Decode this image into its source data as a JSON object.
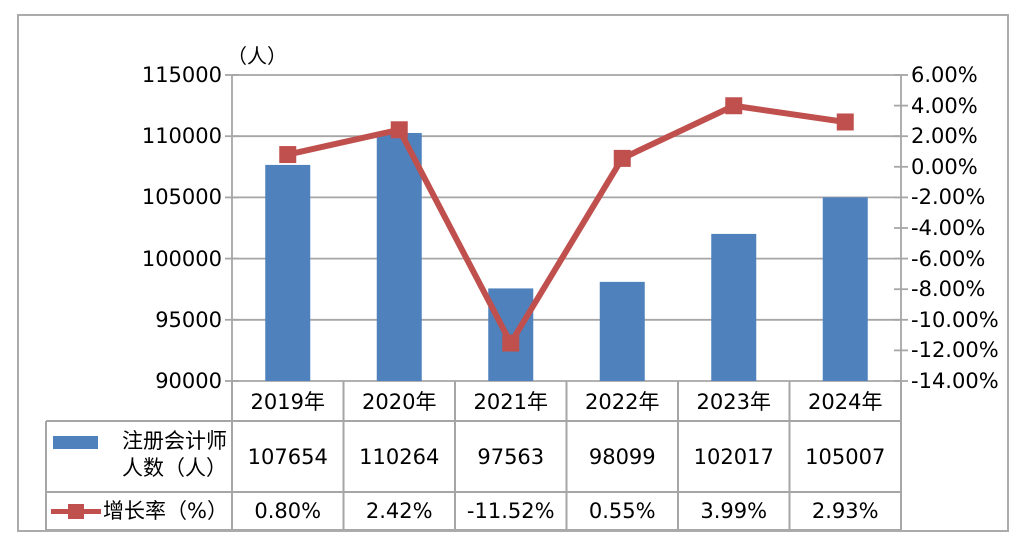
{
  "chart_data": {
    "type": "combo-bar-line",
    "categories": [
      "2019年",
      "2020年",
      "2021年",
      "2022年",
      "2023年",
      "2024年"
    ],
    "series": [
      {
        "name": "注册会计师人数（人）",
        "type": "bar",
        "axis": "left",
        "color": "#4F81BD",
        "values": [
          107654,
          110264,
          97563,
          98099,
          102017,
          105007
        ]
      },
      {
        "name": "增长率（%）",
        "type": "line",
        "axis": "right",
        "color": "#C0504D",
        "marker": "square",
        "values": [
          0.8,
          2.42,
          -11.52,
          0.55,
          3.99,
          2.93
        ]
      }
    ],
    "left_axis": {
      "title": "（人）",
      "min": 90000,
      "max": 115000,
      "step": 5000,
      "tick_labels": [
        "115000",
        "110000",
        "105000",
        "100000",
        "95000",
        "90000"
      ]
    },
    "right_axis": {
      "min": -14,
      "max": 6,
      "step": 2,
      "tick_labels": [
        "6.00%",
        "4.00%",
        "2.00%",
        "0.00%",
        "-2.00%",
        "-4.00%",
        "-6.00%",
        "-8.00%",
        "-10.00%",
        "-12.00%",
        "-14.00%"
      ]
    },
    "grid": true,
    "legend_position": "left-of-data-table"
  },
  "table": {
    "rows": [
      {
        "legend": "bar-swatch",
        "label_lines": [
          "注册会计师",
          "人数（人）"
        ],
        "values": [
          "107654",
          "110264",
          "97563",
          "98099",
          "102017",
          "105007"
        ]
      },
      {
        "legend": "line-marker",
        "label_lines": [
          "增长率（%）"
        ],
        "values": [
          "0.80%",
          "2.42%",
          "-11.52%",
          "0.55%",
          "3.99%",
          "2.93%"
        ]
      }
    ]
  },
  "colors": {
    "bar": "#4F81BD",
    "line": "#C0504D",
    "grid": "#A6A6A6",
    "frame": "#ABABAB",
    "text": "#000000"
  }
}
